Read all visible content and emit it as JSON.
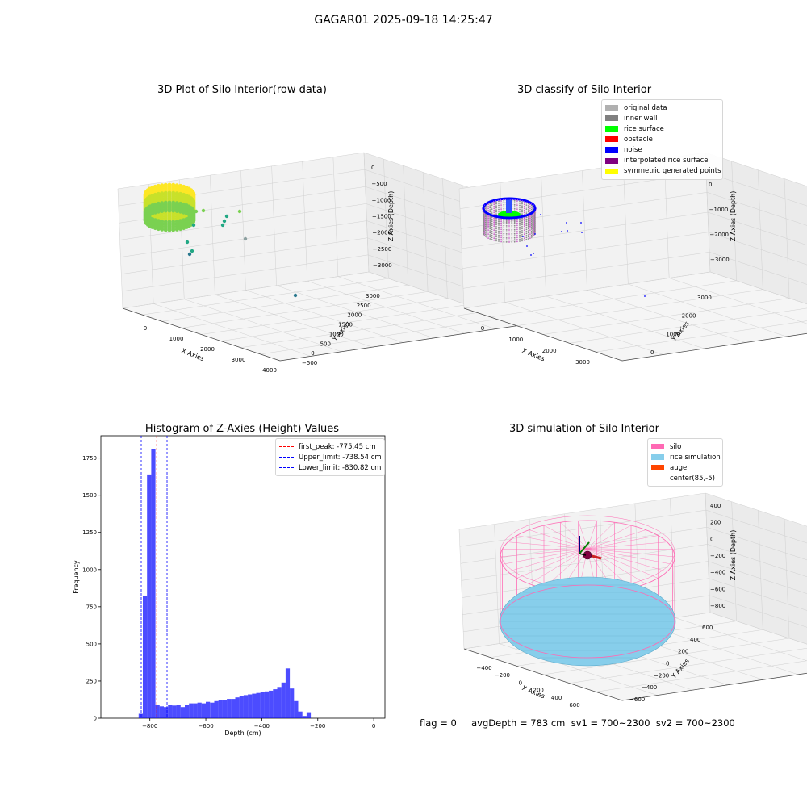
{
  "figure_title": "GAGAR01 2025-09-18 14:25:47",
  "footer_text": "flag = 0     avgDepth = 783 cm  sv1 = 700~2300  sv2 = 700~2300",
  "chart_data": [
    {
      "type": "scatter",
      "panel": "top-left",
      "title": "3D Plot of Silo Interior(row data)",
      "xlabel": "X Axies",
      "ylabel": "Y Axies",
      "zlabel": "Z Axies (Depth)",
      "x_ticks": [
        "0",
        "1000",
        "2000",
        "3000",
        "4000"
      ],
      "y_ticks": [
        "−500",
        "0",
        "500",
        "1000",
        "1500",
        "2000",
        "2500",
        "3000"
      ],
      "z_ticks": [
        "0",
        "−500",
        "−1000",
        "−1500",
        "−2000",
        "−2500",
        "−3000"
      ],
      "colormap": [
        "#fde725",
        "#7ad151",
        "#22a884",
        "#2a788e",
        "#414487"
      ],
      "grid": true
    },
    {
      "type": "scatter",
      "panel": "top-right",
      "title": "3D classify of Silo Interior",
      "xlabel": "X Axies",
      "ylabel": "Y Axies",
      "zlabel": "Z Axies (Depth)",
      "x_ticks": [
        "0",
        "1000",
        "2000",
        "3000"
      ],
      "y_ticks": [
        "0",
        "1000",
        "2000",
        "3000"
      ],
      "z_ticks": [
        "0",
        "−1000",
        "−2000",
        "−3000"
      ],
      "legend": [
        {
          "label": "original data",
          "color": "#b0b0b0"
        },
        {
          "label": "inner wall",
          "color": "#808080"
        },
        {
          "label": "rice surface",
          "color": "#00ff00"
        },
        {
          "label": "obstacle",
          "color": "#ff0000"
        },
        {
          "label": "noise",
          "color": "#0000ff"
        },
        {
          "label": "interpolated rice surface",
          "color": "#800080"
        },
        {
          "label": "symmetric generated points",
          "color": "#ffff00"
        }
      ],
      "legend_position": "top-right",
      "grid": true
    },
    {
      "type": "bar",
      "panel": "bottom-left",
      "title": "Histogram of Z-Axies (Height) Values",
      "xlabel": "Depth (cm)",
      "ylabel": "Frequency",
      "xlim": [
        -975,
        40
      ],
      "ylim": [
        0,
        1900
      ],
      "x_ticks": [
        -800,
        -600,
        -400,
        -200,
        0
      ],
      "y_ticks": [
        0,
        250,
        500,
        750,
        1000,
        1250,
        1500,
        1750
      ],
      "bin_width": 15,
      "bin_start": -840,
      "values": [
        30,
        820,
        1640,
        1810,
        90,
        80,
        75,
        90,
        85,
        90,
        75,
        90,
        100,
        100,
        105,
        100,
        110,
        105,
        115,
        120,
        125,
        130,
        130,
        140,
        150,
        155,
        160,
        165,
        170,
        175,
        180,
        185,
        195,
        210,
        240,
        335,
        200,
        115,
        45,
        15,
        40
      ],
      "bar_color": "#0000ff",
      "vlines": [
        {
          "x": -775.45,
          "label": "first_peak: -775.45 cm",
          "color": "#ff0000"
        },
        {
          "x": -738.54,
          "label": "Upper_limit: -738.54 cm",
          "color": "#0000ff"
        },
        {
          "x": -830.82,
          "label": "Lower_limit: -830.82 cm",
          "color": "#0000ff"
        }
      ],
      "legend_position": "top-right"
    },
    {
      "type": "surface",
      "panel": "bottom-right",
      "title": "3D simulation of Silo Interior",
      "xlabel": "X Axies",
      "ylabel": "Y Axies",
      "zlabel": "Z Axies (Depth)",
      "x_ticks": [
        "−400",
        "−200",
        "0",
        "200",
        "400",
        "600"
      ],
      "y_ticks": [
        "600",
        "400",
        "200",
        "0",
        "−200",
        "−400",
        "−600"
      ],
      "z_ticks": [
        "400",
        "200",
        "0",
        "−200",
        "−400",
        "−600",
        "−800"
      ],
      "legend": [
        {
          "label": "silo",
          "color": "#ff69b4"
        },
        {
          "label": "rice simulation",
          "color": "#87ceeb"
        },
        {
          "label": "auger",
          "color": "#ff4500"
        },
        {
          "label": "center(85,-5)",
          "color": ""
        }
      ],
      "legend_position": "top-right",
      "grid": true
    }
  ]
}
